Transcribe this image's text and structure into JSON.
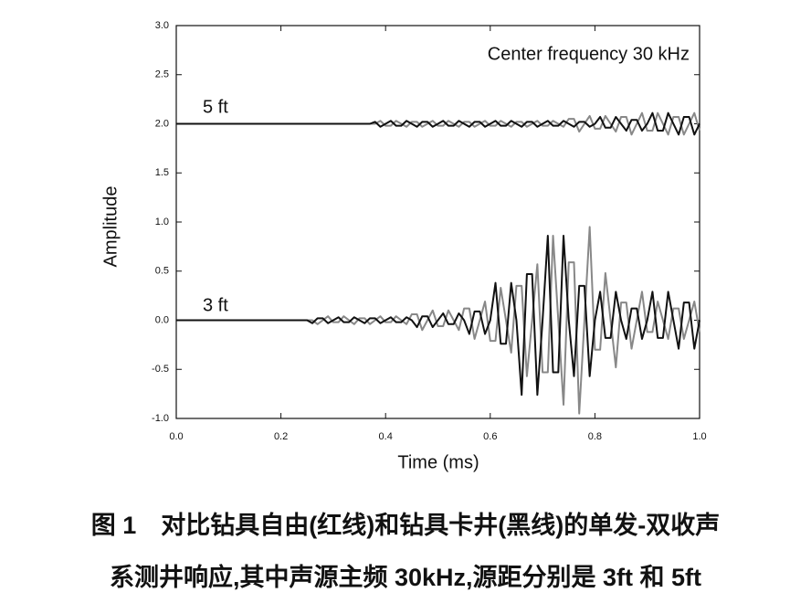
{
  "chart_data": {
    "type": "line",
    "xlabel": "Time (ms)",
    "ylabel": "Amplitude",
    "annotations": [
      "Center frequency 30 kHz",
      "5 ft",
      "3 ft"
    ],
    "xlim": [
      0,
      1
    ],
    "ylim": [
      -1,
      3
    ],
    "xticks": [
      {
        "value": 0,
        "label": "0.0"
      },
      {
        "value": 0.2,
        "label": "0.2"
      },
      {
        "value": 0.4,
        "label": "0.4"
      },
      {
        "value": 0.6,
        "label": "0.6"
      },
      {
        "value": 0.8,
        "label": "0.8"
      },
      {
        "value": 1,
        "label": "1.0"
      }
    ],
    "yticks": [
      {
        "value": -1,
        "label": "-1.0"
      },
      {
        "value": -0.5,
        "label": "-0.5"
      },
      {
        "value": 0,
        "label": "0.0"
      },
      {
        "value": 0.5,
        "label": "0.5"
      },
      {
        "value": 1,
        "label": "1.0"
      },
      {
        "value": 1.5,
        "label": "1.5"
      },
      {
        "value": 2,
        "label": "2.0"
      },
      {
        "value": 2.5,
        "label": "2.5"
      },
      {
        "value": 3,
        "label": "3.0"
      }
    ],
    "x": [
      0,
      0.01,
      0.02,
      0.03,
      0.04,
      0.05,
      0.06,
      0.07,
      0.08,
      0.09,
      0.1,
      0.11,
      0.12,
      0.13,
      0.14,
      0.15,
      0.16,
      0.17,
      0.18,
      0.19,
      0.2,
      0.21,
      0.22,
      0.23,
      0.24,
      0.25,
      0.26,
      0.27,
      0.28,
      0.29,
      0.3,
      0.31,
      0.32,
      0.33,
      0.34,
      0.35,
      0.36,
      0.37,
      0.38,
      0.39,
      0.4,
      0.41,
      0.42,
      0.43,
      0.44,
      0.45,
      0.46,
      0.47,
      0.48,
      0.49,
      0.5,
      0.51,
      0.52,
      0.53,
      0.54,
      0.55,
      0.56,
      0.57,
      0.58,
      0.59,
      0.6,
      0.61,
      0.62,
      0.63,
      0.64,
      0.65,
      0.66,
      0.67,
      0.68,
      0.69,
      0.7,
      0.71,
      0.72,
      0.73,
      0.74,
      0.75,
      0.76,
      0.77,
      0.78,
      0.79,
      0.8,
      0.81,
      0.82,
      0.83,
      0.84,
      0.85,
      0.86,
      0.87,
      0.88,
      0.89,
      0.9,
      0.91,
      0.92,
      0.93,
      0.94,
      0.95,
      0.96,
      0.97,
      0.98,
      0.99,
      1
    ],
    "series": [
      {
        "color": "#111111",
        "values": [
          0,
          0,
          0,
          0,
          0,
          0,
          0,
          0,
          0,
          0,
          0,
          0,
          0,
          0,
          0,
          0,
          0,
          0,
          0,
          0,
          0,
          0,
          0,
          0,
          0,
          0,
          -0.03,
          0.02,
          0.02,
          -0.03,
          0,
          0.03,
          -0.02,
          -0.02,
          0.03,
          0,
          -0.03,
          0.02,
          0.02,
          -0.03,
          0,
          0.03,
          -0.02,
          -0.02,
          0.03,
          0,
          -0.07,
          0.04,
          0.04,
          -0.07,
          0,
          0.07,
          -0.04,
          -0.04,
          0.07,
          0,
          -0.14,
          0.09,
          0.09,
          -0.14,
          0,
          0.38,
          -0.24,
          -0.24,
          0.38,
          0,
          -0.76,
          0.47,
          0.47,
          -0.76,
          0,
          0.86,
          -0.53,
          -0.53,
          0.86,
          0,
          -0.57,
          0.35,
          0.35,
          -0.57,
          0,
          0.29,
          -0.18,
          -0.18,
          0.29,
          0,
          -0.19,
          0.12,
          0.12,
          -0.19,
          0,
          0.29,
          -0.18,
          -0.18,
          0.29,
          0,
          -0.29,
          0.18,
          0.18,
          -0.29,
          0
        ]
      },
      {
        "color": "#888888",
        "values": [
          0,
          0,
          0,
          0,
          0,
          0,
          0,
          0,
          0,
          0,
          0,
          0,
          0,
          0,
          0,
          0,
          0,
          0,
          0,
          0,
          0,
          0,
          0,
          0,
          0,
          0,
          0,
          -0.04,
          0,
          0.04,
          -0.02,
          -0.02,
          0.04,
          0,
          -0.04,
          0.02,
          0.02,
          -0.04,
          0,
          0.04,
          -0.02,
          -0.02,
          0.04,
          0,
          -0.04,
          0.06,
          0.06,
          -0.1,
          0,
          0.1,
          -0.06,
          -0.06,
          0.1,
          0,
          -0.1,
          0.12,
          0.12,
          -0.19,
          0,
          0.19,
          -0.21,
          -0.21,
          0.33,
          0,
          -0.33,
          0.35,
          0.35,
          -0.57,
          0,
          0.57,
          -0.53,
          -0.53,
          0.86,
          0,
          -0.86,
          0.59,
          0.59,
          -0.95,
          0,
          0.95,
          -0.3,
          -0.3,
          0.48,
          0,
          -0.48,
          0.18,
          0.18,
          -0.29,
          0,
          0.29,
          -0.12,
          -0.12,
          0.19,
          0,
          -0.19,
          0.12,
          0.12,
          -0.19,
          0,
          0.19,
          -0.12
        ]
      },
      {
        "color": "#111111",
        "values": [
          2,
          2,
          2,
          2,
          2,
          2,
          2,
          2,
          2,
          2,
          2,
          2,
          2,
          2,
          2,
          2,
          2,
          2,
          2,
          2,
          2,
          2,
          2,
          2,
          2,
          2,
          2,
          2,
          2,
          2,
          2,
          2,
          2,
          2,
          2,
          2,
          2,
          2,
          2.02,
          1.97,
          2,
          2.03,
          1.98,
          1.98,
          2.03,
          2,
          1.97,
          2.02,
          2.02,
          1.97,
          2,
          2.03,
          1.98,
          1.98,
          2.03,
          2,
          1.97,
          2.02,
          2.02,
          1.97,
          2,
          2.03,
          1.98,
          1.98,
          2.03,
          2,
          1.97,
          2.02,
          2.02,
          1.97,
          2,
          2.03,
          1.98,
          1.98,
          2.03,
          2,
          1.97,
          2.02,
          2.02,
          1.97,
          2,
          2.07,
          1.96,
          1.96,
          2.07,
          2,
          1.93,
          2.04,
          2.04,
          1.93,
          2,
          2.11,
          1.93,
          1.93,
          2.11,
          2,
          1.89,
          2.07,
          2.07,
          1.89,
          2
        ]
      },
      {
        "color": "#888888",
        "values": [
          2,
          2,
          2,
          2,
          2,
          2,
          2,
          2,
          2,
          2,
          2,
          2,
          2,
          2,
          2,
          2,
          2,
          2,
          2,
          2,
          2,
          2,
          2,
          2,
          2,
          2,
          2,
          2,
          2,
          2,
          2,
          2,
          2,
          2,
          2,
          2,
          2,
          2,
          2,
          2.03,
          1.98,
          1.98,
          2.03,
          2,
          1.97,
          2.02,
          2.02,
          1.97,
          2,
          2.03,
          1.98,
          1.98,
          2.03,
          2,
          1.97,
          2.02,
          2.02,
          1.97,
          2,
          2.03,
          1.98,
          1.98,
          2.03,
          2,
          1.97,
          2.02,
          2.02,
          1.97,
          2,
          2.03,
          1.98,
          1.98,
          2.03,
          2,
          1.97,
          2.05,
          2.05,
          1.92,
          2,
          2.08,
          1.95,
          1.95,
          2.08,
          2,
          1.92,
          2.07,
          2.07,
          1.89,
          2,
          2.11,
          1.93,
          1.93,
          2.11,
          2,
          1.89,
          2.07,
          2.07,
          1.89,
          2,
          2.11,
          1.93
        ]
      }
    ]
  },
  "caption": [
    "图 1　对比钻具自由(红线)和钻具卡井(黑线)的单发-双收声",
    "系测井响应,其中声源主频 30kHz,源距分别是 3ft 和 5ft"
  ]
}
